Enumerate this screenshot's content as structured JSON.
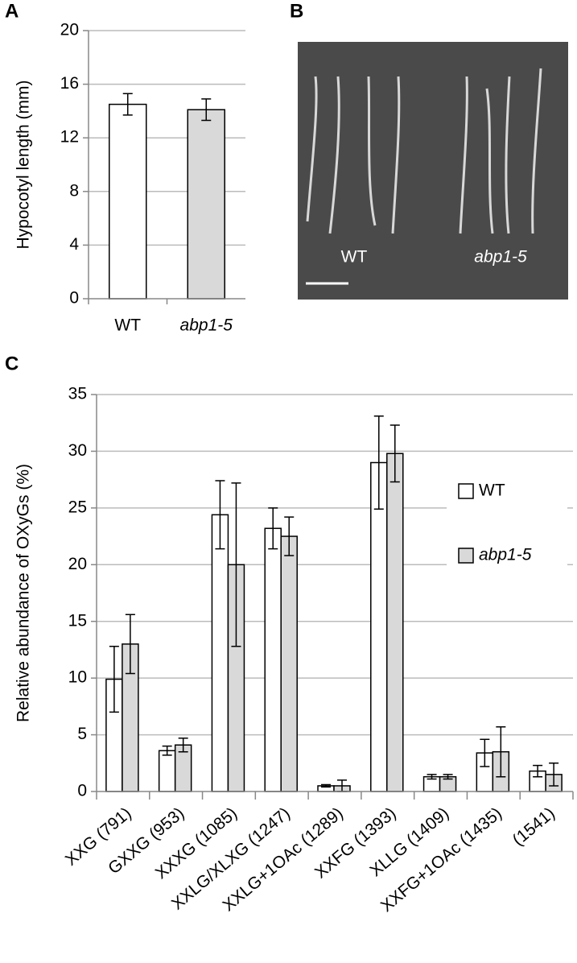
{
  "panel_labels": [
    "A",
    "B",
    "C"
  ],
  "photo": {
    "labels": [
      "WT",
      "abp1-5"
    ]
  },
  "chart_data": [
    {
      "type": "bar",
      "ylabel": "Hypocotyl length (mm)",
      "categories": [
        "WT",
        "abp1-5"
      ],
      "values": [
        14.5,
        14.1
      ],
      "errors": [
        0.8,
        0.8
      ],
      "colors": [
        "#ffffff",
        "#d9d9d9"
      ],
      "ylim": [
        0,
        20
      ],
      "yticks": [
        0,
        4,
        8,
        12,
        16,
        20
      ],
      "grid": true
    },
    {
      "type": "grouped_bar",
      "ylabel": "Relative abundance of OXyGs (%)",
      "categories": [
        "XXG (791)",
        "GXXG (953)",
        "XXXG (1085)",
        "XXLG/XLXG (1247)",
        "XXLG+1OAc (1289)",
        "XXFG (1393)",
        "XLLG (1409)",
        "XXFG+1OAc (1435)",
        "(1541)"
      ],
      "series": [
        {
          "name": "WT",
          "color": "#ffffff",
          "values": [
            9.9,
            3.6,
            24.4,
            23.2,
            0.5,
            29.0,
            1.3,
            3.4,
            1.8
          ],
          "errors": [
            2.9,
            0.4,
            3.0,
            1.8,
            0.1,
            4.1,
            0.2,
            1.2,
            0.5
          ]
        },
        {
          "name": "abp1-5",
          "color": "#d9d9d9",
          "values": [
            13.0,
            4.1,
            20.0,
            22.5,
            0.5,
            29.8,
            1.3,
            3.5,
            1.5
          ],
          "errors": [
            2.6,
            0.6,
            7.2,
            1.7,
            0.5,
            2.5,
            0.2,
            2.2,
            1.0
          ]
        }
      ],
      "ylim": [
        0,
        35
      ],
      "yticks": [
        0,
        5,
        10,
        15,
        20,
        25,
        30,
        35
      ],
      "grid": true,
      "legend": "right"
    }
  ]
}
